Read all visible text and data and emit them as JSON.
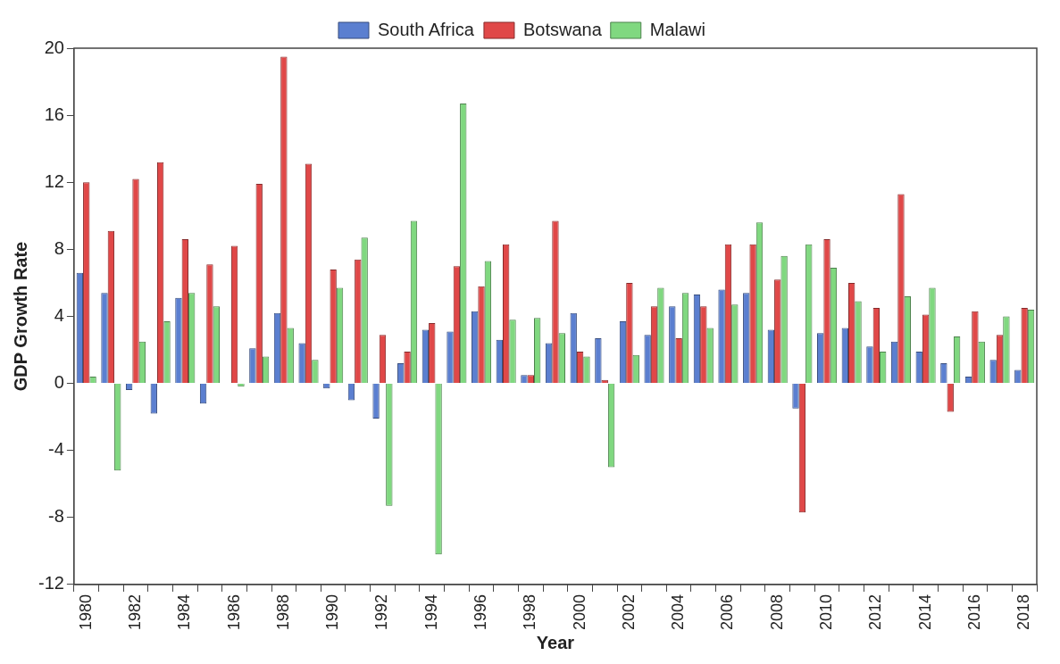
{
  "chart_data": {
    "type": "bar",
    "xlabel": "Year",
    "ylabel": "GDP Growth Rate",
    "categories": [
      "1980",
      null,
      "1982",
      null,
      "1984",
      null,
      "1986",
      null,
      "1988",
      null,
      "1990",
      null,
      "1992",
      null,
      "1994",
      null,
      "1996",
      null,
      "1998",
      null,
      "2000",
      null,
      "2002",
      null,
      "2004",
      null,
      "2006",
      null,
      "2008",
      null,
      "2010",
      null,
      "2012",
      null,
      "2014",
      null,
      "2016",
      null,
      "2018"
    ],
    "series": [
      {
        "name": "South Africa",
        "color": "#5b7fd0",
        "values": [
          6.6,
          5.4,
          -0.4,
          -1.8,
          5.1,
          -1.2,
          0.0,
          2.1,
          4.2,
          2.4,
          -0.3,
          -1.0,
          -2.1,
          1.2,
          3.2,
          3.1,
          4.3,
          2.6,
          0.5,
          2.4,
          4.2,
          2.7,
          3.7,
          2.9,
          4.6,
          5.3,
          5.6,
          5.4,
          3.2,
          -1.5,
          3.0,
          3.3,
          2.2,
          2.5,
          1.9,
          1.2,
          0.4,
          1.4,
          0.8
        ]
      },
      {
        "name": "Botswana",
        "color": "#e04848",
        "values": [
          12.0,
          9.1,
          12.2,
          13.2,
          8.6,
          7.1,
          8.2,
          11.9,
          19.5,
          13.1,
          6.8,
          7.4,
          2.9,
          1.9,
          3.6,
          7.0,
          5.8,
          8.3,
          0.5,
          9.7,
          1.9,
          0.2,
          6.0,
          4.6,
          2.7,
          4.6,
          8.3,
          8.3,
          6.2,
          -7.7,
          8.6,
          6.0,
          4.5,
          11.3,
          4.1,
          -1.7,
          4.3,
          2.9,
          4.5
        ]
      },
      {
        "name": "Malawi",
        "color": "#80d880",
        "values": [
          0.4,
          -5.2,
          2.5,
          3.7,
          5.4,
          4.6,
          -0.2,
          1.6,
          3.3,
          1.4,
          5.7,
          8.7,
          -7.3,
          9.7,
          -10.2,
          16.7,
          7.3,
          3.8,
          3.9,
          3.0,
          1.6,
          -5.0,
          1.7,
          5.7,
          5.4,
          3.3,
          4.7,
          9.6,
          7.6,
          8.3,
          6.9,
          4.9,
          1.9,
          5.2,
          5.7,
          2.8,
          2.5,
          4.0,
          4.4
        ]
      }
    ],
    "ylim": [
      -12,
      20
    ],
    "yticks": [
      -12,
      -8,
      -4,
      0,
      4,
      8,
      12,
      16,
      20
    ],
    "grid": false,
    "legend": "top"
  }
}
